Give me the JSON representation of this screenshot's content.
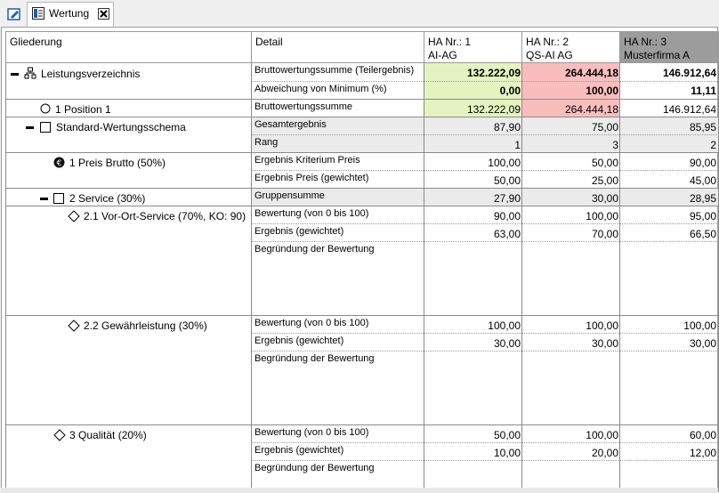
{
  "tab": {
    "label": "Wertung"
  },
  "headers": {
    "gliederung": "Gliederung",
    "detail": "Detail",
    "bidders": [
      {
        "line1": "HA Nr.: 1",
        "line2": "AI-AG"
      },
      {
        "line1": "HA Nr.: 2",
        "line2": "QS-AI AG"
      },
      {
        "line1": "HA Nr.: 3",
        "line2": "Musterfirma A"
      }
    ]
  },
  "tree": {
    "root": "Leistungsverzeichnis",
    "position": "1 Position 1",
    "schema": "Standard-Wertungsschema",
    "preis": "1 Preis Brutto (50%)",
    "service": "2 Service (30%)",
    "vor_ort": "2.1 Vor-Ort-Service (70%, KO: 90)",
    "gewaehr": "2.2 Gewährleistung (30%)",
    "qualitaet": "3 Qualität (20%)"
  },
  "rows": {
    "r1": {
      "detail": "Bruttowertungssumme (Teilergebnis)",
      "v": [
        "132.222,09",
        "264.444,18",
        "146.912,64"
      ]
    },
    "r2": {
      "detail": "Abweichung von Minimum (%)",
      "v": [
        "0,00",
        "100,00",
        "11,11"
      ]
    },
    "r3": {
      "detail": "Bruttowertungssumme",
      "v": [
        "132.222,09",
        "264.444,18",
        "146.912,64"
      ]
    },
    "r4": {
      "detail": "Gesamtergebnis",
      "v": [
        "87,90",
        "75,00",
        "85,95"
      ]
    },
    "r5": {
      "detail": "Rang",
      "v": [
        "1",
        "3",
        "2"
      ]
    },
    "r6": {
      "detail": "Ergebnis Kriterium Preis",
      "v": [
        "100,00",
        "50,00",
        "90,00"
      ]
    },
    "r7": {
      "detail": "Ergebnis Preis (gewichtet)",
      "v": [
        "50,00",
        "25,00",
        "45,00"
      ]
    },
    "r8": {
      "detail": "Gruppensumme",
      "v": [
        "27,90",
        "30,00",
        "28,95"
      ]
    },
    "r9": {
      "detail": "Bewertung (von 0 bis 100)",
      "v": [
        "90,00",
        "100,00",
        "95,00"
      ]
    },
    "r10": {
      "detail": "Ergebnis (gewichtet)",
      "v": [
        "63,00",
        "70,00",
        "66,50"
      ]
    },
    "r11": {
      "detail": "Begründung der Bewertung"
    },
    "r12": {
      "detail": "Bewertung (von 0 bis 100)",
      "v": [
        "100,00",
        "100,00",
        "100,00"
      ]
    },
    "r13": {
      "detail": "Ergebnis (gewichtet)",
      "v": [
        "30,00",
        "30,00",
        "30,00"
      ]
    },
    "r14": {
      "detail": "Begründung der Bewertung"
    },
    "r15": {
      "detail": "Bewertung (von 0 bis 100)",
      "v": [
        "50,00",
        "100,00",
        "60,00"
      ]
    },
    "r16": {
      "detail": "Ergebnis (gewichtet)",
      "v": [
        "10,00",
        "20,00",
        "12,00"
      ]
    },
    "r17": {
      "detail": "Begründung der Bewertung"
    }
  },
  "colors": {
    "green": "#e5f3c0",
    "red": "#f9bdbd",
    "gray": "#ebebeb",
    "header_selected": "#9c9c9c"
  }
}
